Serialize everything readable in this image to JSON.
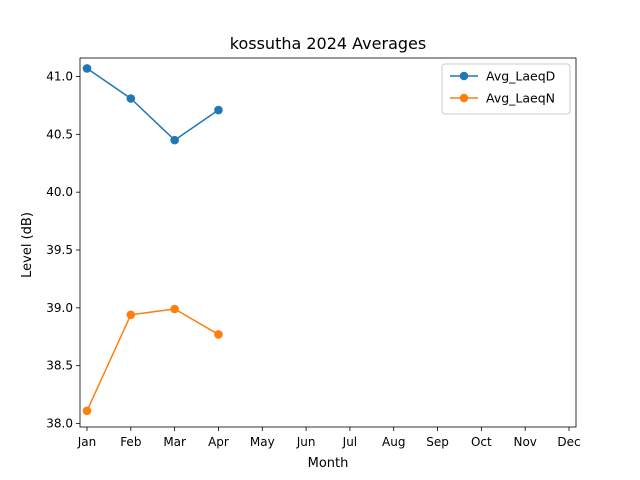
{
  "chart_data": {
    "type": "line",
    "title": "kossutha 2024 Averages",
    "xlabel": "Month",
    "ylabel": "Level (dB)",
    "categories": [
      "Jan",
      "Feb",
      "Mar",
      "Apr",
      "May",
      "Jun",
      "Jul",
      "Aug",
      "Sep",
      "Oct",
      "Nov",
      "Dec"
    ],
    "series": [
      {
        "name": "Avg_LaeqD",
        "color": "#1f77b4",
        "marker": "circle",
        "values": [
          41.07,
          40.81,
          40.45,
          40.71,
          null,
          null,
          null,
          null,
          null,
          null,
          null,
          null
        ]
      },
      {
        "name": "Avg_LaeqN",
        "color": "#ff7f0e",
        "marker": "circle",
        "values": [
          38.11,
          38.94,
          38.99,
          38.77,
          null,
          null,
          null,
          null,
          null,
          null,
          null,
          null
        ]
      }
    ],
    "ylim": [
      37.97,
      41.16
    ],
    "yticks": [
      38.0,
      38.5,
      39.0,
      39.5,
      40.0,
      40.5,
      41.0
    ],
    "ytick_labels": [
      "38.0",
      "38.5",
      "39.0",
      "39.5",
      "40.0",
      "40.5",
      "41.0"
    ],
    "grid": false,
    "legend_position": "top-right"
  }
}
